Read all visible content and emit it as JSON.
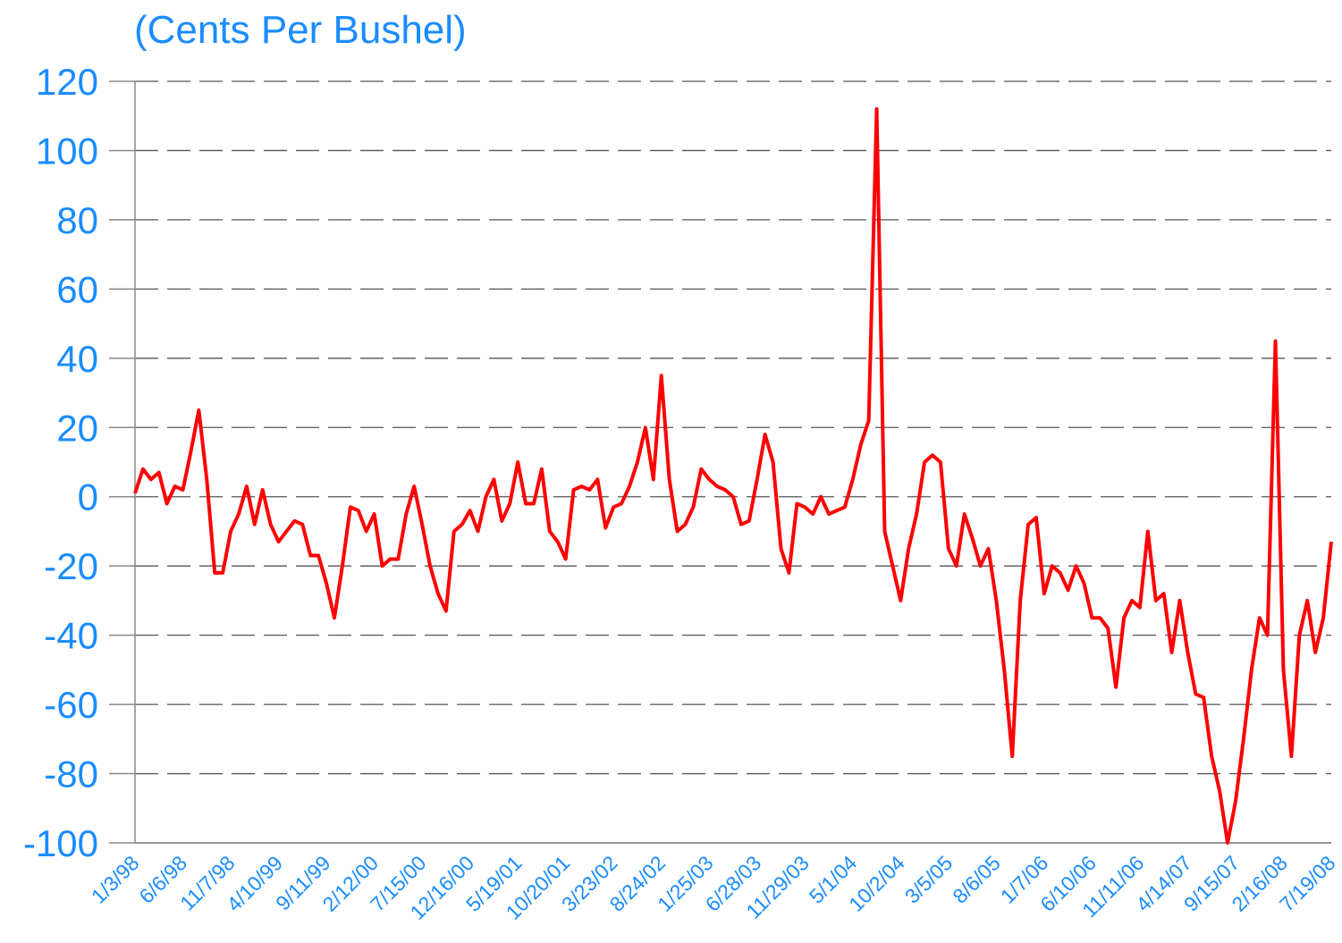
{
  "chart_data": {
    "type": "line",
    "title": "(Cents Per Bushel)",
    "categories": [
      "1/3/98",
      null,
      null,
      null,
      null,
      null,
      "6/6/98",
      null,
      null,
      null,
      null,
      null,
      "11/7/98",
      null,
      null,
      null,
      null,
      null,
      "4/10/99",
      null,
      null,
      null,
      null,
      null,
      "9/11/99",
      null,
      null,
      null,
      null,
      null,
      "2/12/00",
      null,
      null,
      null,
      null,
      null,
      "7/15/00",
      null,
      null,
      null,
      null,
      null,
      "12/16/00",
      null,
      null,
      null,
      null,
      null,
      "5/19/01",
      null,
      null,
      null,
      null,
      null,
      "10/20/01",
      null,
      null,
      null,
      null,
      null,
      "3/23/02",
      null,
      null,
      null,
      null,
      null,
      "8/24/02",
      null,
      null,
      null,
      null,
      null,
      "1/25/03",
      null,
      null,
      null,
      null,
      null,
      "6/28/03",
      null,
      null,
      null,
      null,
      null,
      "11/29/03",
      null,
      null,
      null,
      null,
      null,
      "5/1/04",
      null,
      null,
      null,
      null,
      null,
      "10/2/04",
      null,
      null,
      null,
      null,
      null,
      "3/5/05",
      null,
      null,
      null,
      null,
      null,
      "8/6/05",
      null,
      null,
      null,
      null,
      null,
      "1/7/06",
      null,
      null,
      null,
      null,
      null,
      "6/10/06",
      null,
      null,
      null,
      null,
      null,
      "11/11/06",
      null,
      null,
      null,
      null,
      null,
      "4/14/07",
      null,
      null,
      null,
      null,
      null,
      "9/15/07",
      null,
      null,
      null,
      null,
      null,
      "2/16/08",
      null,
      null,
      null,
      null,
      null,
      "7/19/08"
    ],
    "series": [
      {
        "color": "#ff0000",
        "values": [
          1,
          8,
          5,
          7,
          -2,
          3,
          2,
          13,
          25,
          5,
          -22,
          -22,
          -10,
          -5,
          3,
          -8,
          2,
          -8,
          -13,
          -10,
          -7,
          -8,
          -17,
          -17,
          -25,
          -35,
          -20,
          -3,
          -4,
          -10,
          -5,
          -20,
          -18,
          -18,
          -5,
          3,
          -8,
          -20,
          -28,
          -33,
          -10,
          -8,
          -4,
          -10,
          0,
          5,
          -7,
          -2,
          10,
          -2,
          -2,
          8,
          -10,
          -13,
          -18,
          2,
          3,
          2,
          5,
          -9,
          -3,
          -2,
          3,
          10,
          20,
          5,
          35,
          5,
          -10,
          -8,
          -3,
          8,
          5,
          3,
          2,
          0,
          -8,
          -7,
          5,
          18,
          10,
          -15,
          -22,
          -2,
          -3,
          -5,
          0,
          -5,
          -4,
          -3,
          5,
          15,
          22,
          112,
          -10,
          -20,
          -30,
          -15,
          -5,
          10,
          12,
          10,
          -15,
          -20,
          -5,
          -12,
          -20,
          -15,
          -30,
          -50,
          -75,
          -30,
          -8,
          -6,
          -28,
          -20,
          -22,
          -27,
          -20,
          -25,
          -35,
          -35,
          -38,
          -55,
          -35,
          -30,
          -32,
          -10,
          -30,
          -28,
          -45,
          -30,
          -45,
          -57,
          -58,
          -75,
          -85,
          -100,
          -88,
          -70,
          -50,
          -35,
          -40,
          45,
          -50,
          -75,
          -40,
          -30,
          -45,
          -35,
          -13
        ]
      }
    ],
    "ylim": [
      -100,
      120
    ],
    "yticks": [
      -100,
      -80,
      -60,
      -40,
      -20,
      0,
      20,
      40,
      60,
      80,
      100,
      120
    ],
    "grid": true
  }
}
